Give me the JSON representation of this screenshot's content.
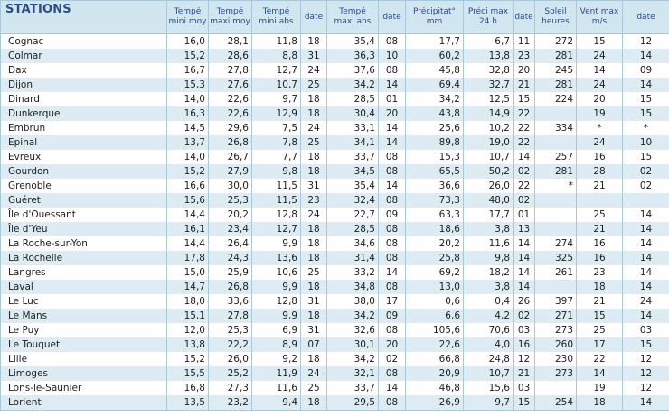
{
  "headers": {
    "stations": "STATIONS",
    "tmin_moy": "Tempé\nmini moy",
    "tmax_moy": "Tempé\nmaxi moy",
    "tmin_abs": "Tempé\nmini abs",
    "date1": "date",
    "tmax_abs": "Tempé\nmaxi abs",
    "date2": "date",
    "precip": "Précipitat°\nmm",
    "precip_max": "Préci max\n24 h",
    "date3": "date",
    "soleil": "Soleil\nheures",
    "vent": "Vent max\nm/s",
    "date4": "date"
  },
  "rows": [
    [
      "Cognac",
      "16,0",
      "28,1",
      "11,8",
      "18",
      "35,4",
      "08",
      "17,7",
      "6,7",
      "11",
      "272",
      "15",
      "12"
    ],
    [
      "Colmar",
      "15,2",
      "28,6",
      "8,8",
      "31",
      "36,3",
      "10",
      "60,2",
      "13,8",
      "23",
      "281",
      "24",
      "14"
    ],
    [
      "Dax",
      "16,7",
      "27,8",
      "12,7",
      "24",
      "37,6",
      "08",
      "45,8",
      "32,8",
      "20",
      "245",
      "14",
      "09"
    ],
    [
      "Dijon",
      "15,3",
      "27,6",
      "10,7",
      "25",
      "34,2",
      "14",
      "69,4",
      "32,7",
      "21",
      "281",
      "24",
      "14"
    ],
    [
      "Dinard",
      "14,0",
      "22,6",
      "9,7",
      "18",
      "28,5",
      "01",
      "34,2",
      "12,5",
      "15",
      "224",
      "20",
      "15"
    ],
    [
      "Dunkerque",
      "16,3",
      "22,6",
      "12,9",
      "18",
      "30,4",
      "20",
      "43,8",
      "14,9",
      "22",
      "",
      "19",
      "15"
    ],
    [
      "Embrun",
      "14,5",
      "29,6",
      "7,5",
      "24",
      "33,1",
      "14",
      "25,6",
      "10,2",
      "22",
      "334",
      "*",
      "*"
    ],
    [
      "Epinal",
      "13,7",
      "26,8",
      "7,8",
      "25",
      "34,1",
      "14",
      "89,8",
      "19,0",
      "22",
      "",
      "24",
      "10"
    ],
    [
      "Evreux",
      "14,0",
      "26,7",
      "7,7",
      "18",
      "33,7",
      "08",
      "15,3",
      "10,7",
      "14",
      "257",
      "16",
      "15"
    ],
    [
      "Gourdon",
      "15,2",
      "27,9",
      "9,8",
      "18",
      "34,5",
      "08",
      "65,5",
      "50,2",
      "02",
      "281",
      "28",
      "02"
    ],
    [
      "Grenoble",
      "16,6",
      "30,0",
      "11,5",
      "31",
      "35,4",
      "14",
      "36,6",
      "26,0",
      "22",
      "*",
      "21",
      "02"
    ],
    [
      "Guéret",
      "15,6",
      "25,3",
      "11,5",
      "23",
      "32,4",
      "08",
      "73,3",
      "48,0",
      "02",
      "",
      "",
      ""
    ],
    [
      "Île d'Ouessant",
      "14,4",
      "20,2",
      "12,8",
      "24",
      "22,7",
      "09",
      "63,3",
      "17,7",
      "01",
      "",
      "25",
      "14"
    ],
    [
      "Île d'Yeu",
      "16,1",
      "23,4",
      "12,7",
      "18",
      "28,5",
      "08",
      "18,6",
      "3,8",
      "13",
      "",
      "21",
      "14"
    ],
    [
      "La Roche-sur-Yon",
      "14,4",
      "26,4",
      "9,9",
      "18",
      "34,6",
      "08",
      "20,2",
      "11,6",
      "14",
      "274",
      "16",
      "14"
    ],
    [
      "La Rochelle",
      "17,8",
      "24,3",
      "13,6",
      "18",
      "31,4",
      "08",
      "25,8",
      "9,8",
      "14",
      "325",
      "16",
      "14"
    ],
    [
      "Langres",
      "15,0",
      "25,9",
      "10,6",
      "25",
      "33,2",
      "14",
      "69,2",
      "18,2",
      "14",
      "261",
      "23",
      "14"
    ],
    [
      "Laval",
      "14,7",
      "26,8",
      "9,9",
      "18",
      "34,8",
      "08",
      "13,0",
      "3,8",
      "14",
      "",
      "18",
      "14"
    ],
    [
      "Le Luc",
      "18,0",
      "33,6",
      "12,8",
      "31",
      "38,0",
      "17",
      "0,6",
      "0,4",
      "26",
      "397",
      "21",
      "24"
    ],
    [
      "Le Mans",
      "15,1",
      "27,8",
      "9,9",
      "18",
      "34,2",
      "09",
      "6,6",
      "4,2",
      "02",
      "271",
      "15",
      "14"
    ],
    [
      "Le Puy",
      "12,0",
      "25,3",
      "6,9",
      "31",
      "32,6",
      "08",
      "105,6",
      "70,6",
      "03",
      "273",
      "25",
      "03"
    ],
    [
      "Le Touquet",
      "13,8",
      "22,2",
      "8,9",
      "07",
      "30,1",
      "20",
      "22,6",
      "4,0",
      "16",
      "260",
      "17",
      "15"
    ],
    [
      "Lille",
      "15,2",
      "26,0",
      "9,2",
      "18",
      "34,2",
      "02",
      "66,8",
      "24,8",
      "12",
      "230",
      "22",
      "12"
    ],
    [
      "Limoges",
      "15,5",
      "25,2",
      "11,9",
      "24",
      "32,1",
      "08",
      "20,9",
      "10,7",
      "21",
      "273",
      "14",
      "12"
    ],
    [
      "Lons-le-Saunier",
      "16,8",
      "27,3",
      "11,6",
      "25",
      "33,7",
      "14",
      "46,8",
      "15,6",
      "03",
      "",
      "19",
      "12"
    ],
    [
      "Lorient",
      "13,5",
      "23,2",
      "9,4",
      "18",
      "29,5",
      "08",
      "26,9",
      "9,7",
      "15",
      "254",
      "18",
      "14"
    ]
  ]
}
